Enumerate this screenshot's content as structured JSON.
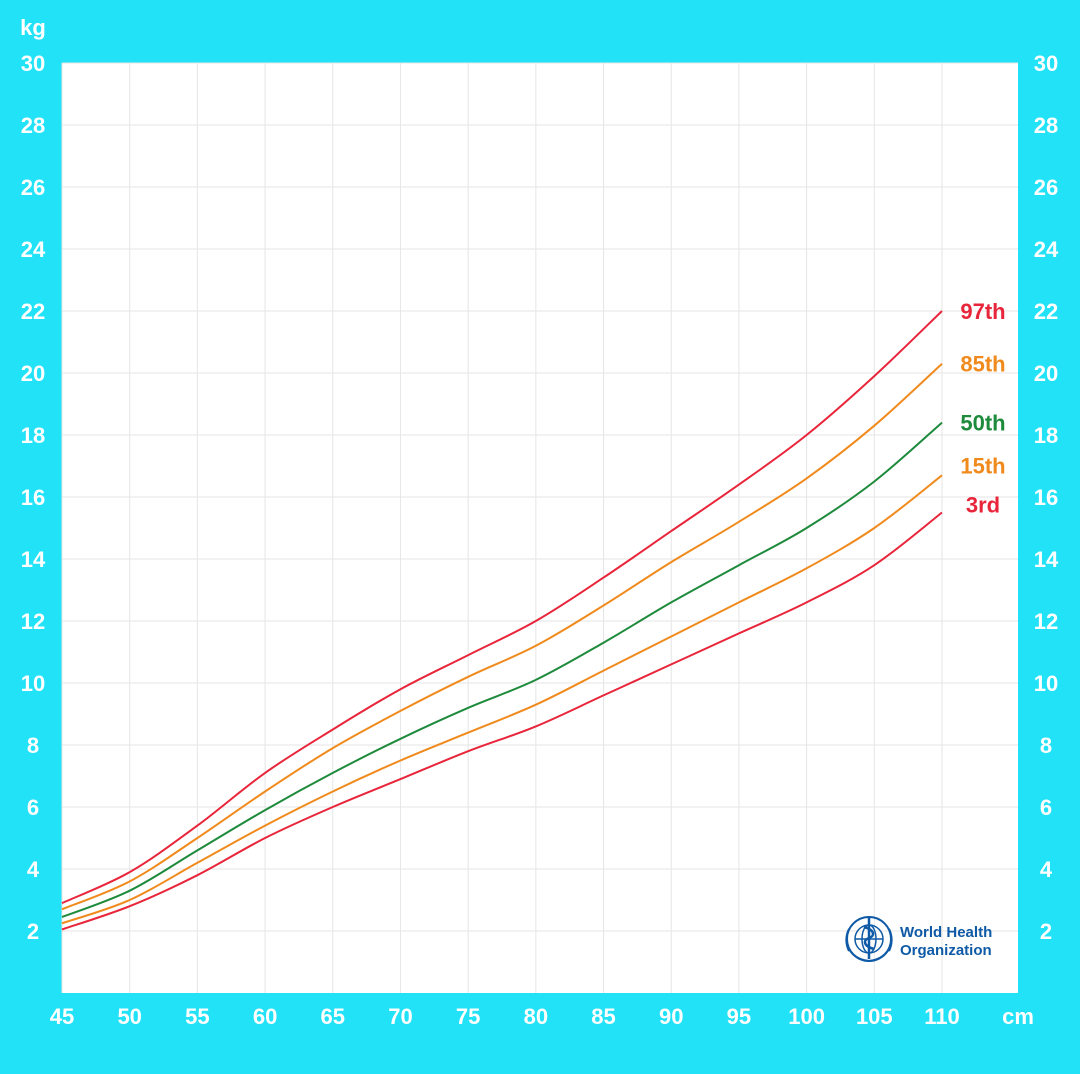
{
  "chart_data": {
    "type": "line",
    "title": "",
    "xlabel": "",
    "ylabel": "",
    "x_unit": "cm",
    "y_unit": "kg",
    "xlim": [
      45,
      110
    ],
    "ylim": [
      0,
      30
    ],
    "x_ticks": [
      45,
      50,
      55,
      60,
      65,
      70,
      75,
      80,
      85,
      90,
      95,
      100,
      105,
      110
    ],
    "y_ticks": [
      2,
      4,
      6,
      8,
      10,
      12,
      14,
      16,
      18,
      20,
      22,
      24,
      26,
      28,
      30
    ],
    "grid": true,
    "legend": "labels at right end of lines",
    "x": [
      45,
      50,
      55,
      60,
      65,
      70,
      75,
      80,
      85,
      90,
      95,
      100,
      105,
      110
    ],
    "series": [
      {
        "name": "97th",
        "color": "#e8253a",
        "values": [
          2.9,
          3.9,
          5.4,
          7.1,
          8.5,
          9.8,
          10.9,
          12.0,
          13.4,
          14.9,
          16.4,
          18.0,
          19.9,
          22.0
        ]
      },
      {
        "name": "85th",
        "color": "#f08a1c",
        "values": [
          2.7,
          3.6,
          5.0,
          6.5,
          7.9,
          9.1,
          10.2,
          11.2,
          12.5,
          13.9,
          15.2,
          16.6,
          18.3,
          20.3
        ]
      },
      {
        "name": "50th",
        "color": "#1e8a3c",
        "values": [
          2.45,
          3.3,
          4.6,
          5.9,
          7.1,
          8.2,
          9.2,
          10.1,
          11.3,
          12.6,
          13.8,
          15.0,
          16.5,
          18.4
        ]
      },
      {
        "name": "15th",
        "color": "#f08a1c",
        "values": [
          2.25,
          3.0,
          4.2,
          5.4,
          6.5,
          7.5,
          8.4,
          9.3,
          10.4,
          11.5,
          12.6,
          13.7,
          15.0,
          16.7
        ]
      },
      {
        "name": "3rd",
        "color": "#e8253a",
        "values": [
          2.05,
          2.8,
          3.8,
          5.0,
          6.0,
          6.9,
          7.8,
          8.6,
          9.6,
          10.6,
          11.6,
          12.6,
          13.8,
          15.5
        ]
      }
    ]
  },
  "logo": {
    "line1": "World Health",
    "line2": "Organization",
    "brand_color": "#0f5aa6"
  },
  "colors": {
    "background": "#22e2f7",
    "plot_area": "#ffffff",
    "grid": "#e6e6e6",
    "tick_text": "#ffffff"
  }
}
